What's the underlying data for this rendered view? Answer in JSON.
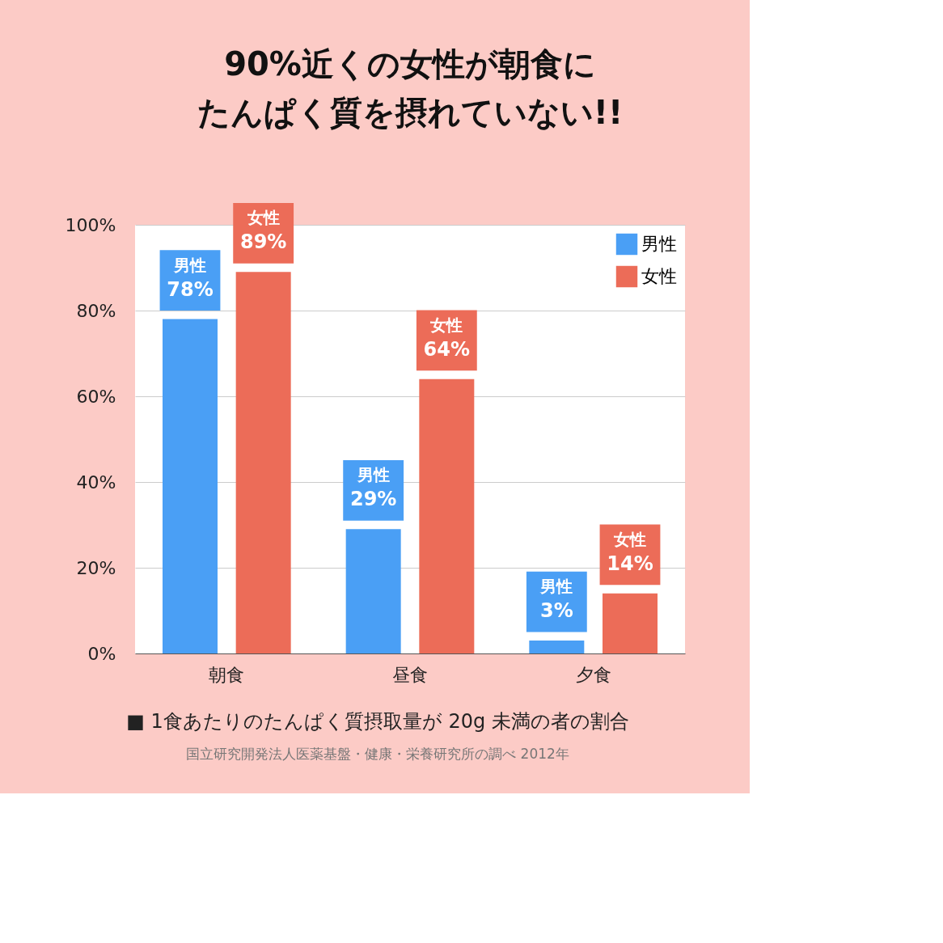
{
  "chart_data": {
    "type": "bar",
    "title": [
      "90%近くの女性が朝食に",
      "たんぱく質を摂れていない!!"
    ],
    "categories": [
      "朝食",
      "昼食",
      "夕食"
    ],
    "series": [
      {
        "name": "男性",
        "color": "#4a9ff5",
        "values": [
          78,
          29,
          3
        ],
        "value_labels": [
          "78%",
          "29%",
          "3%"
        ]
      },
      {
        "name": "女性",
        "color": "#ec6c58",
        "values": [
          89,
          64,
          14
        ],
        "value_labels": [
          "89%",
          "64%",
          "14%"
        ]
      }
    ],
    "ylim": [
      0,
      100
    ],
    "yticks": [
      {
        "value": 0,
        "label": "0%"
      },
      {
        "value": 20,
        "label": "20%"
      },
      {
        "value": 40,
        "label": "40%"
      },
      {
        "value": 60,
        "label": "60%"
      },
      {
        "value": 80,
        "label": "80%"
      },
      {
        "value": 100,
        "label": "100%"
      }
    ],
    "grid": "y",
    "legend": "top right",
    "annotations": [
      "■ 1食あたりのたんぱく質摂取量が 20g 未満の者の割合",
      "国立研究開発法人医薬基盤・健康・栄養研究所の調べ 2012年"
    ]
  }
}
